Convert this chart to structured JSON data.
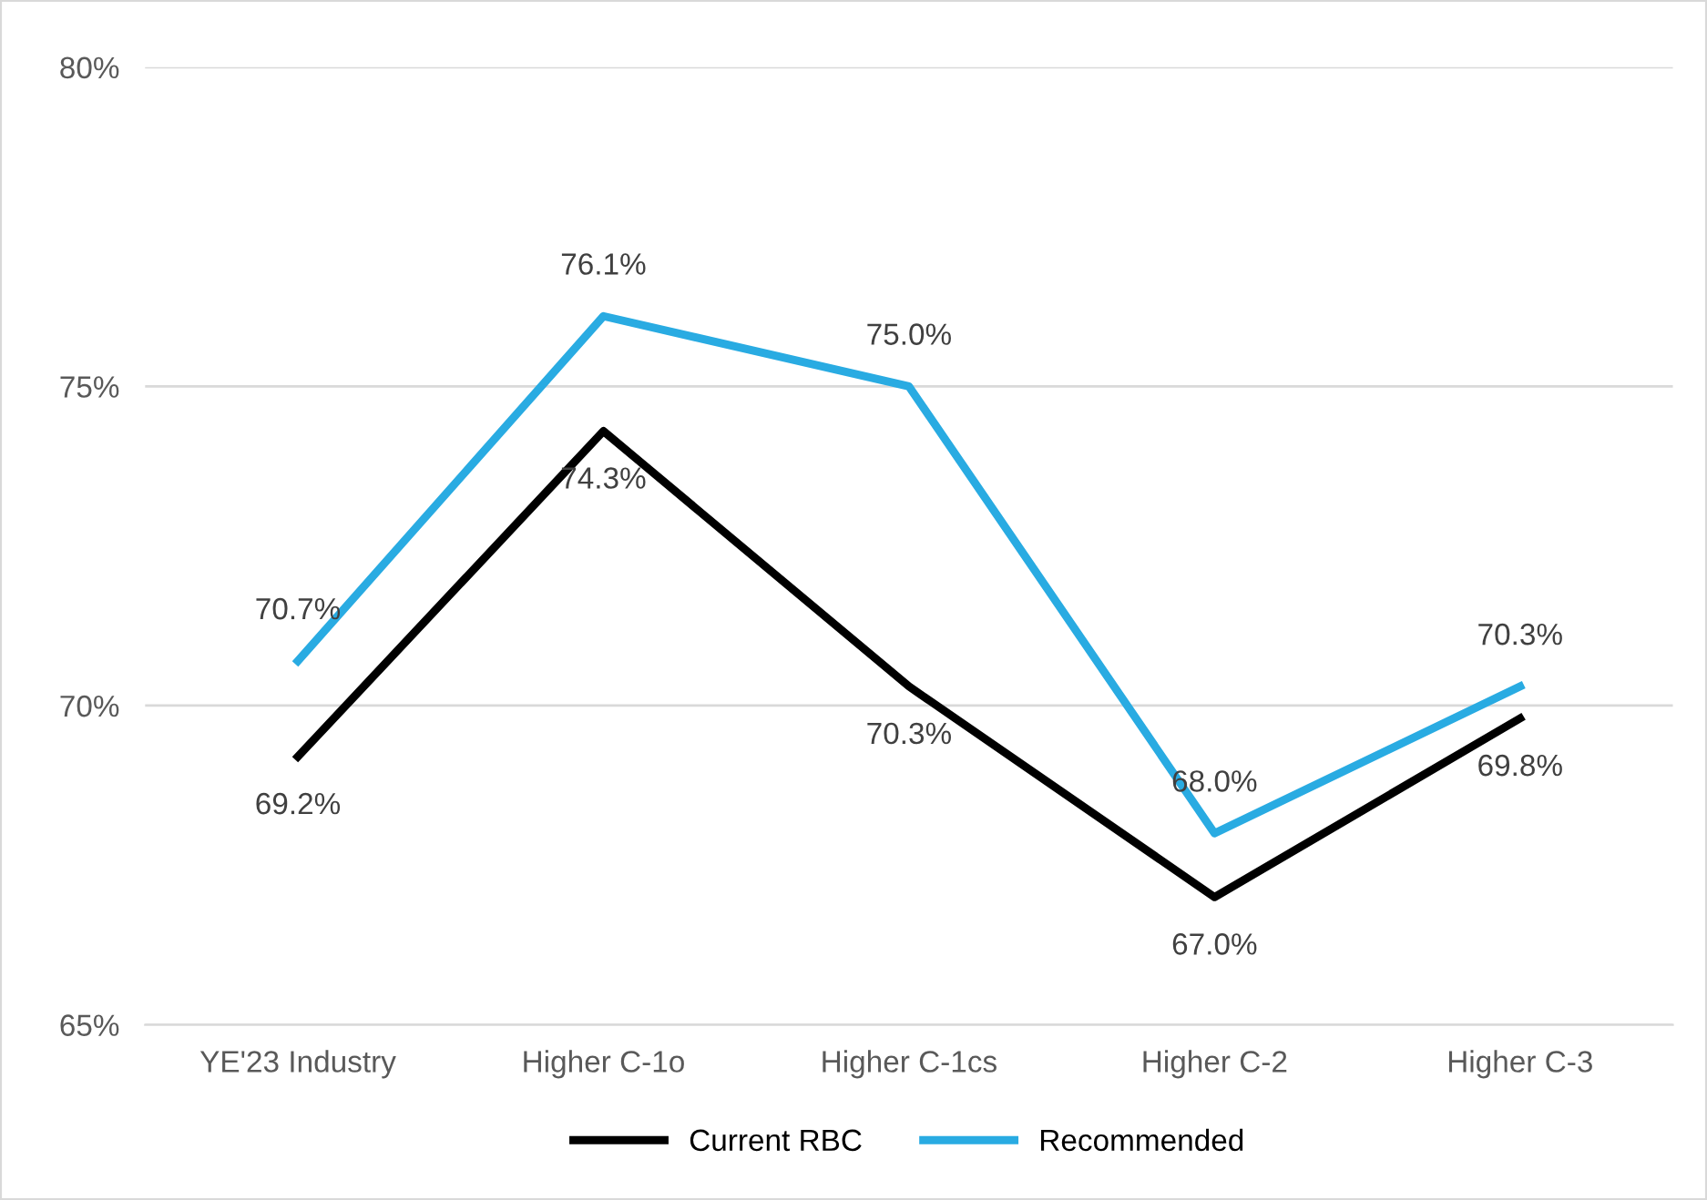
{
  "chart_data": {
    "type": "line",
    "categories": [
      "YE'23 Industry",
      "Higher C-1o",
      "Higher C-1cs",
      "Higher C-2",
      "Higher C-3"
    ],
    "series": [
      {
        "name": "Current RBC",
        "color": "#000000",
        "values": [
          69.2,
          74.3,
          70.3,
          67.0,
          69.8
        ],
        "value_labels": [
          "69.2%",
          "74.3%",
          "70.3%",
          "67.0%",
          "69.8%"
        ]
      },
      {
        "name": "Recommended",
        "color": "#29abe2",
        "values": [
          70.7,
          76.1,
          75.0,
          68.0,
          70.3
        ],
        "value_labels": [
          "70.7%",
          "76.1%",
          "75.0%",
          "68.0%",
          "70.3%"
        ]
      }
    ],
    "ylim": [
      65,
      80
    ],
    "yticks": [
      {
        "value": 65,
        "label": "65%"
      },
      {
        "value": 70,
        "label": "70%"
      },
      {
        "value": 75,
        "label": "75%"
      },
      {
        "value": 80,
        "label": "80%"
      }
    ],
    "grid": "y",
    "legend": "bottom",
    "line_style": "solid"
  }
}
